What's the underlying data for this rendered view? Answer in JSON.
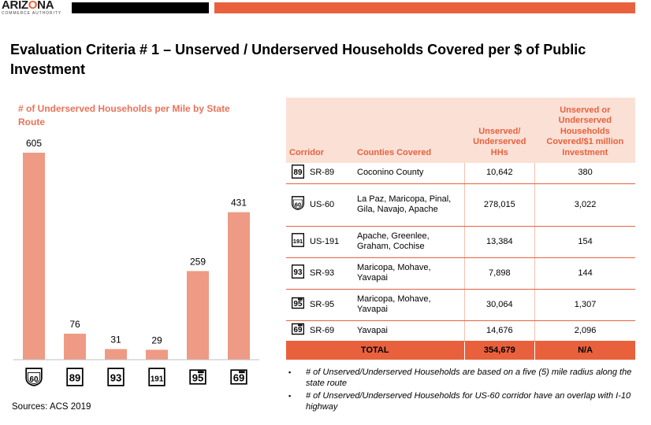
{
  "header": {
    "logo_main_a": "ARIZ",
    "logo_main_o": "O",
    "logo_main_b": "NA",
    "logo_sub": "COMMERCE AUTHORITY"
  },
  "title": "Evaluation Criteria # 1 – Unserved / Underserved Households Covered per $ of Public Investment",
  "chart_title": "# of Underserved Households per Mile by State Route",
  "sources": "Sources: ACS 2019",
  "colors": {
    "accent": "#e8613c",
    "bar": "#ee9a84",
    "header_fill": "#fbe0d6"
  },
  "chart_data": {
    "type": "bar",
    "categories": [
      "US-60",
      "SR-89",
      "SR-93",
      "US-191",
      "SR-95",
      "SR-69"
    ],
    "category_icons": [
      "us-route-60-shield-icon",
      "sr-89-shield-icon",
      "sr-93-shield-icon",
      "us-191-shield-icon",
      "sr-95-shield-icon",
      "sr-69-shield-icon"
    ],
    "series": [
      {
        "values": [
          605,
          76,
          31,
          29,
          259,
          431
        ]
      }
    ],
    "title": "# of Underserved Households per Mile by State Route",
    "xlabel": "",
    "ylabel": "",
    "ylim": [
      0,
      605
    ],
    "data_labels": true,
    "grid": false
  },
  "table": {
    "headers": [
      "Corridor",
      "Counties Covered",
      "Unserved/ Underserved HHs",
      "Unserved or Underserved Households Covered/$1 million Investment"
    ],
    "rows": [
      {
        "icon": "sr-89-shield-icon",
        "shield": "89",
        "kind": "sr",
        "corridor": "SR-89",
        "counties": "Coconino County",
        "hhs": "10,642",
        "per_million": "380"
      },
      {
        "icon": "us-route-60-shield-icon",
        "shield": "60",
        "kind": "us",
        "corridor": "US-60",
        "counties": "La Paz, Maricopa, Pinal, Gila, Navajo, Apache",
        "hhs": "278,015",
        "per_million": "3,022"
      },
      {
        "icon": "us-191-shield-icon",
        "shield": "191",
        "kind": "sr",
        "corridor": "US-191",
        "counties": "Apache, Greenlee, Graham, Cochise",
        "hhs": "13,384",
        "per_million": "154"
      },
      {
        "icon": "sr-93-shield-icon",
        "shield": "93",
        "kind": "sr",
        "corridor": "SR-93",
        "counties": "Maricopa, Mohave, Yavapai",
        "hhs": "7,898",
        "per_million": "144"
      },
      {
        "icon": "sr-95-shield-icon",
        "shield": "95",
        "kind": "az",
        "corridor": "SR-95",
        "counties": "Maricopa, Mohave, Yavapai",
        "hhs": "30,064",
        "per_million": "1,307"
      },
      {
        "icon": "sr-69-shield-icon",
        "shield": "69",
        "kind": "az",
        "corridor": "SR-69",
        "counties": "Yavapai",
        "hhs": "14,676",
        "per_million": "2,096"
      }
    ],
    "total": {
      "label": "TOTAL",
      "hhs": "354,679",
      "per_million": "N/A"
    }
  },
  "notes": [
    "# of Unserved/Underserved  Households are based on a five (5) mile radius along the state route",
    "# of Unserved/Underserved  Households for US-60 corridor have an overlap  with  I-10 highway"
  ],
  "bullet": "▪"
}
